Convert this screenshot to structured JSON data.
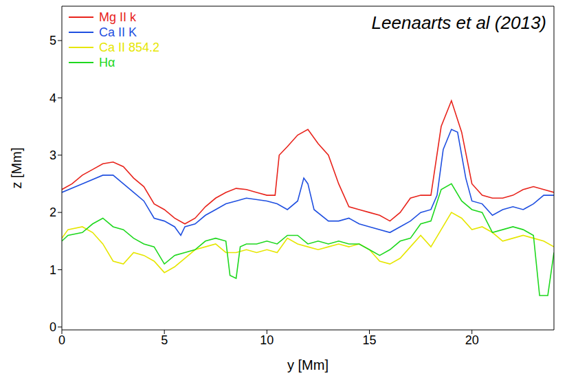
{
  "chart_data": {
    "type": "line",
    "annotation": "Leenaarts et al (2013)",
    "xlabel": "y [Mm]",
    "ylabel": "z [Mm]",
    "xlim": [
      0,
      24
    ],
    "ylim": [
      -0.05,
      5.6
    ],
    "xticks": [
      0,
      5,
      10,
      15,
      20
    ],
    "yticks": [
      0,
      1,
      2,
      3,
      4,
      5
    ],
    "legend": "upper left",
    "series": [
      {
        "name": "Mg II k",
        "color": "#e8231b",
        "x": [
          0,
          0.5,
          1,
          1.5,
          2,
          2.5,
          3,
          3.5,
          4,
          4.5,
          5,
          5.5,
          6,
          6.5,
          7,
          7.5,
          8,
          8.5,
          9,
          9.5,
          10,
          10.4,
          10.6,
          11,
          11.5,
          12,
          12.5,
          13,
          13.5,
          14,
          14.5,
          15,
          15.5,
          16,
          16.5,
          17,
          17.5,
          18,
          18.5,
          19,
          19.5,
          20,
          20.5,
          21,
          21.5,
          22,
          22.5,
          23,
          23.5,
          24
        ],
        "values": [
          2.4,
          2.5,
          2.65,
          2.75,
          2.85,
          2.88,
          2.8,
          2.6,
          2.45,
          2.15,
          2.05,
          1.9,
          1.8,
          1.9,
          2.1,
          2.25,
          2.35,
          2.42,
          2.4,
          2.35,
          2.3,
          2.3,
          3.0,
          3.15,
          3.35,
          3.45,
          3.2,
          3.0,
          2.5,
          2.1,
          2.05,
          2.0,
          1.95,
          1.85,
          2.0,
          2.25,
          2.3,
          2.3,
          3.5,
          3.95,
          3.4,
          2.5,
          2.3,
          2.25,
          2.25,
          2.3,
          2.4,
          2.45,
          2.4,
          2.35
        ]
      },
      {
        "name": "Ca II K",
        "color": "#1f4fe0",
        "x": [
          0,
          1,
          2,
          2.5,
          3,
          3.5,
          4,
          4.5,
          5,
          5.5,
          5.8,
          6,
          6.5,
          7,
          7.5,
          8,
          8.5,
          9,
          10,
          10.5,
          11,
          11.5,
          11.8,
          12,
          12.3,
          13,
          13.5,
          14,
          14.5,
          15,
          16,
          16.5,
          17,
          17.5,
          18,
          18.3,
          18.6,
          19,
          19.3,
          19.7,
          20,
          20.5,
          21,
          21.5,
          22,
          22.5,
          23,
          23.5,
          24
        ],
        "values": [
          2.35,
          2.5,
          2.65,
          2.65,
          2.5,
          2.35,
          2.2,
          1.9,
          1.85,
          1.75,
          1.6,
          1.75,
          1.8,
          1.95,
          2.05,
          2.15,
          2.2,
          2.25,
          2.2,
          2.15,
          2.05,
          2.2,
          2.6,
          2.5,
          2.05,
          1.85,
          1.85,
          1.9,
          1.8,
          1.75,
          1.65,
          1.75,
          1.85,
          2.0,
          2.05,
          2.3,
          3.1,
          3.45,
          3.4,
          2.6,
          2.2,
          2.15,
          1.95,
          2.05,
          2.1,
          2.05,
          2.15,
          2.3,
          2.3
        ]
      },
      {
        "name": "Ca II 854.2",
        "color": "#e6e600",
        "x": [
          0,
          0.3,
          1,
          1.5,
          2,
          2.5,
          3,
          3.5,
          4,
          4.5,
          5,
          5.5,
          6,
          6.5,
          7,
          7.5,
          8,
          8.5,
          9,
          9.5,
          10,
          10.5,
          11,
          11.5,
          12,
          12.5,
          13,
          13.5,
          14,
          14.5,
          15,
          15.5,
          16,
          16.5,
          17,
          17.5,
          18,
          18.5,
          19,
          19.5,
          20,
          20.5,
          21,
          21.5,
          22,
          22.5,
          23,
          23.5,
          24
        ],
        "values": [
          1.55,
          1.7,
          1.75,
          1.65,
          1.45,
          1.15,
          1.1,
          1.3,
          1.25,
          1.15,
          0.95,
          1.05,
          1.2,
          1.35,
          1.4,
          1.45,
          1.3,
          1.3,
          1.35,
          1.3,
          1.35,
          1.3,
          1.55,
          1.45,
          1.4,
          1.35,
          1.4,
          1.45,
          1.4,
          1.45,
          1.35,
          1.15,
          1.1,
          1.2,
          1.4,
          1.6,
          1.4,
          1.7,
          2.0,
          1.9,
          1.7,
          1.75,
          1.65,
          1.5,
          1.55,
          1.6,
          1.55,
          1.5,
          1.4
        ]
      },
      {
        "name": "Hα",
        "color": "#1ed81e",
        "x": [
          0,
          0.3,
          1,
          1.5,
          2,
          2.5,
          3,
          3.5,
          4,
          4.5,
          5,
          5.5,
          6,
          6.5,
          7,
          7.5,
          8,
          8.2,
          8.5,
          8.7,
          9,
          9.5,
          10,
          10.5,
          11,
          11.5,
          12,
          12.5,
          13,
          13.5,
          14,
          14.5,
          15,
          15.5,
          16,
          16.5,
          17,
          17.5,
          18,
          18.5,
          19,
          19.5,
          20,
          20.5,
          21,
          21.5,
          22,
          22.5,
          23,
          23.3,
          23.7,
          24
        ],
        "values": [
          1.5,
          1.6,
          1.65,
          1.8,
          1.9,
          1.75,
          1.7,
          1.55,
          1.45,
          1.4,
          1.1,
          1.25,
          1.3,
          1.35,
          1.5,
          1.55,
          1.5,
          0.9,
          0.85,
          1.4,
          1.45,
          1.45,
          1.5,
          1.45,
          1.6,
          1.6,
          1.45,
          1.5,
          1.45,
          1.5,
          1.45,
          1.45,
          1.35,
          1.25,
          1.35,
          1.5,
          1.55,
          1.8,
          1.85,
          2.4,
          2.5,
          2.2,
          2.05,
          2.0,
          1.65,
          1.7,
          1.75,
          1.7,
          1.6,
          0.55,
          0.55,
          1.3
        ]
      }
    ]
  }
}
